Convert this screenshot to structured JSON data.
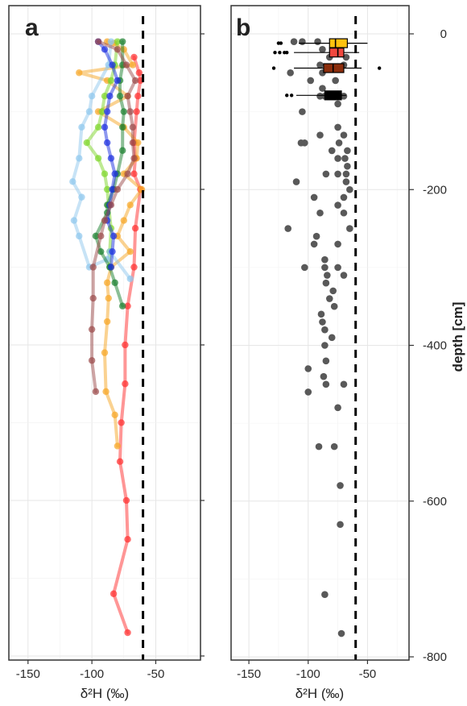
{
  "chart_data": [
    {
      "type": "line",
      "panel_label": "a",
      "xlabel": "δ²H (‰)",
      "xlim": [
        -165,
        -15
      ],
      "xticks": [
        "-150",
        "-100",
        "-50"
      ],
      "ylim": [
        -802,
        3
      ],
      "y_reversed": true,
      "grid": true,
      "reference_line_x": -60,
      "series": [
        {
          "color": "#ff2d2d",
          "points": [
            [
              -67,
              -30
            ],
            [
              -63,
              -50
            ],
            [
              -62,
              -60
            ],
            [
              -64,
              -80
            ],
            [
              -65,
              -100
            ],
            [
              -67,
              -140
            ],
            [
              -66,
              -160
            ],
            [
              -67,
              -180
            ],
            [
              -62,
              -200
            ],
            [
              -66,
              -250
            ],
            [
              -67,
              -300
            ],
            [
              -72,
              -350
            ],
            [
              -74,
              -400
            ],
            [
              -74,
              -450
            ],
            [
              -77,
              -500
            ],
            [
              -78,
              -550
            ],
            [
              -73,
              -600
            ],
            [
              -72,
              -650
            ],
            [
              -83,
              -720
            ],
            [
              -72,
              -770
            ]
          ]
        },
        {
          "color": "#f6a524",
          "points": [
            [
              -88,
              -10
            ],
            [
              -83,
              -12
            ],
            [
              -75,
              -20
            ],
            [
              -68,
              -40
            ],
            [
              -110,
              -50
            ],
            [
              -88,
              -60
            ],
            [
              -72,
              -80
            ],
            [
              -95,
              -100
            ],
            [
              -75,
              -120
            ],
            [
              -64,
              -140
            ],
            [
              -65,
              -160
            ],
            [
              -75,
              -180
            ],
            [
              -61,
              -200
            ],
            [
              -70,
              -220
            ],
            [
              -75,
              -240
            ],
            [
              -80,
              -260
            ],
            [
              -70,
              -280
            ],
            [
              -85,
              -300
            ],
            [
              -88,
              -320
            ],
            [
              -87,
              -340
            ],
            [
              -88,
              -370
            ],
            [
              -90,
              -410
            ],
            [
              -89,
              -460
            ],
            [
              -82,
              -490
            ],
            [
              -80,
              -530
            ]
          ]
        },
        {
          "color": "#7ed62a",
          "points": [
            [
              -80,
              -10
            ],
            [
              -82,
              -40
            ],
            [
              -85,
              -60
            ],
            [
              -90,
              -80
            ],
            [
              -92,
              -100
            ],
            [
              -95,
              -120
            ],
            [
              -104,
              -140
            ],
            [
              -95,
              -160
            ],
            [
              -90,
              -180
            ],
            [
              -88,
              -200
            ],
            [
              -87,
              -220
            ],
            [
              -85,
              -250
            ],
            [
              -86,
              -280
            ],
            [
              -86,
              -300
            ]
          ]
        },
        {
          "color": "#8fc7ee",
          "points": [
            [
              -85,
              -10
            ],
            [
              -87,
              -40
            ],
            [
              -100,
              -80
            ],
            [
              -102,
              -100
            ],
            [
              -108,
              -120
            ],
            [
              -110,
              -160
            ],
            [
              -115,
              -190
            ],
            [
              -108,
              -210
            ],
            [
              -114,
              -240
            ],
            [
              -110,
              -260
            ],
            [
              -102,
              -300
            ],
            [
              -88,
              -290
            ],
            [
              -86,
              -280
            ],
            [
              -70,
              -315
            ]
          ]
        },
        {
          "color": "#1a7f2e",
          "points": [
            [
              -76,
              -10
            ],
            [
              -76,
              -40
            ],
            [
              -78,
              -60
            ],
            [
              -78,
              -80
            ],
            [
              -75,
              -100
            ],
            [
              -76,
              -120
            ],
            [
              -76,
              -150
            ],
            [
              -80,
              -180
            ],
            [
              -83,
              -200
            ],
            [
              -88,
              -220
            ],
            [
              -88,
              -230
            ],
            [
              -97,
              -260
            ],
            [
              -93,
              -280
            ],
            [
              -86,
              -300
            ],
            [
              -82,
              -320
            ],
            [
              -76,
              -350
            ]
          ]
        },
        {
          "color": "#1c2fe0",
          "points": [
            [
              -95,
              -10
            ],
            [
              -90,
              -20
            ],
            [
              -84,
              -40
            ],
            [
              -80,
              -60
            ],
            [
              -86,
              -80
            ],
            [
              -88,
              -100
            ],
            [
              -90,
              -120
            ],
            [
              -88,
              -140
            ],
            [
              -85,
              -160
            ],
            [
              -82,
              -180
            ],
            [
              -84,
              -200
            ],
            [
              -86,
              -220
            ],
            [
              -88,
              -240
            ],
            [
              -83,
              -260
            ],
            [
              -84,
              -280
            ],
            [
              -85,
              -300
            ]
          ]
        },
        {
          "color": "#9b4a4a",
          "points": [
            [
              -95,
              -10
            ],
            [
              -80,
              -20
            ],
            [
              -73,
              -40
            ],
            [
              -66,
              -60
            ],
            [
              -72,
              -80
            ],
            [
              -70,
              -100
            ],
            [
              -68,
              -120
            ],
            [
              -68,
              -140
            ],
            [
              -67,
              -160
            ],
            [
              -72,
              -180
            ],
            [
              -80,
              -200
            ],
            [
              -85,
              -220
            ],
            [
              -90,
              -240
            ],
            [
              -93,
              -260
            ],
            [
              -99,
              -300
            ],
            [
              -99,
              -340
            ],
            [
              -100,
              -380
            ],
            [
              -100,
              -420
            ],
            [
              -97,
              -460
            ]
          ]
        }
      ]
    },
    {
      "type": "scatter",
      "panel_label": "b",
      "xlabel": "δ²H (‰)",
      "ylabel": "depth [cm]",
      "xlim": [
        -165,
        -15
      ],
      "xticks": [
        "-150",
        "-100",
        "-50"
      ],
      "ylim": [
        -802,
        30
      ],
      "yticks": [
        "0",
        "-200",
        "-400",
        "-600",
        "-800"
      ],
      "y_reversed": true,
      "grid": true,
      "reference_line_x": -60,
      "point_color": "#595959",
      "points": [
        [
          -112,
          -10
        ],
        [
          -105,
          -10
        ],
        [
          -92,
          -10
        ],
        [
          -88,
          -20
        ],
        [
          -68,
          -30
        ],
        [
          -82,
          -30
        ],
        [
          -70,
          -40
        ],
        [
          -90,
          -40
        ],
        [
          -115,
          -50
        ],
        [
          -88,
          -50
        ],
        [
          -77,
          -60
        ],
        [
          -98,
          -60
        ],
        [
          -88,
          -70
        ],
        [
          -70,
          -80
        ],
        [
          -90,
          -80
        ],
        [
          -86,
          -80
        ],
        [
          -75,
          -90
        ],
        [
          -105,
          -100
        ],
        [
          -75,
          -120
        ],
        [
          -90,
          -130
        ],
        [
          -70,
          -130
        ],
        [
          -74,
          -140
        ],
        [
          -106,
          -140
        ],
        [
          -103,
          -140
        ],
        [
          -80,
          -150
        ],
        [
          -67,
          -150
        ],
        [
          -75,
          -160
        ],
        [
          -69,
          -160
        ],
        [
          -67,
          -170
        ],
        [
          -75,
          -180
        ],
        [
          -85,
          -180
        ],
        [
          -68,
          -180
        ],
        [
          -68,
          -190
        ],
        [
          -110,
          -190
        ],
        [
          -65,
          -200
        ],
        [
          -70,
          -210
        ],
        [
          -95,
          -210
        ],
        [
          -75,
          -220
        ],
        [
          -70,
          -230
        ],
        [
          -90,
          -230
        ],
        [
          -65,
          -250
        ],
        [
          -117,
          -250
        ],
        [
          -93,
          -260
        ],
        [
          -75,
          -270
        ],
        [
          -95,
          -270
        ],
        [
          -86,
          -290
        ],
        [
          -103,
          -300
        ],
        [
          -86,
          -300
        ],
        [
          -75,
          -300
        ],
        [
          -70,
          -310
        ],
        [
          -84,
          -310
        ],
        [
          -85,
          -320
        ],
        [
          -79,
          -330
        ],
        [
          -82,
          -340
        ],
        [
          -78,
          -350
        ],
        [
          -89,
          -360
        ],
        [
          -88,
          -370
        ],
        [
          -86,
          -380
        ],
        [
          -80,
          -390
        ],
        [
          -86,
          -400
        ],
        [
          -85,
          -420
        ],
        [
          -100,
          -430
        ],
        [
          -87,
          -440
        ],
        [
          -85,
          -450
        ],
        [
          -70,
          -450
        ],
        [
          -100,
          -460
        ],
        [
          -75,
          -480
        ],
        [
          -91,
          -530
        ],
        [
          -78,
          -530
        ],
        [
          -73,
          -580
        ],
        [
          -73,
          -630
        ],
        [
          -86,
          -720
        ],
        [
          -72,
          -770
        ]
      ],
      "boxplots": [
        {
          "color": "#ffc20e",
          "q1": -82,
          "median": -77,
          "q3": -67,
          "whisker_low": -108,
          "whisker_high": -50,
          "depth": -12,
          "outliers": [
            -125,
            -123
          ]
        },
        {
          "color": "#f0483e",
          "q1": -82,
          "median": -75,
          "q3": -70,
          "whisker_low": -112,
          "whisker_high": -57,
          "depth": -24,
          "outliers": [
            -128,
            -124,
            -120,
            -118
          ]
        },
        {
          "color": "#8b2d0c",
          "q1": -87,
          "median": -79,
          "q3": -70,
          "whisker_low": -112,
          "whisker_high": -55,
          "depth": -44,
          "outliers": [
            -129,
            -40
          ]
        },
        {
          "color": "#000000",
          "q1": -86,
          "median": -79,
          "q3": -72,
          "whisker_low": -110,
          "whisker_high": -68,
          "depth": -79,
          "outliers": [
            -118,
            -114
          ]
        }
      ]
    }
  ]
}
